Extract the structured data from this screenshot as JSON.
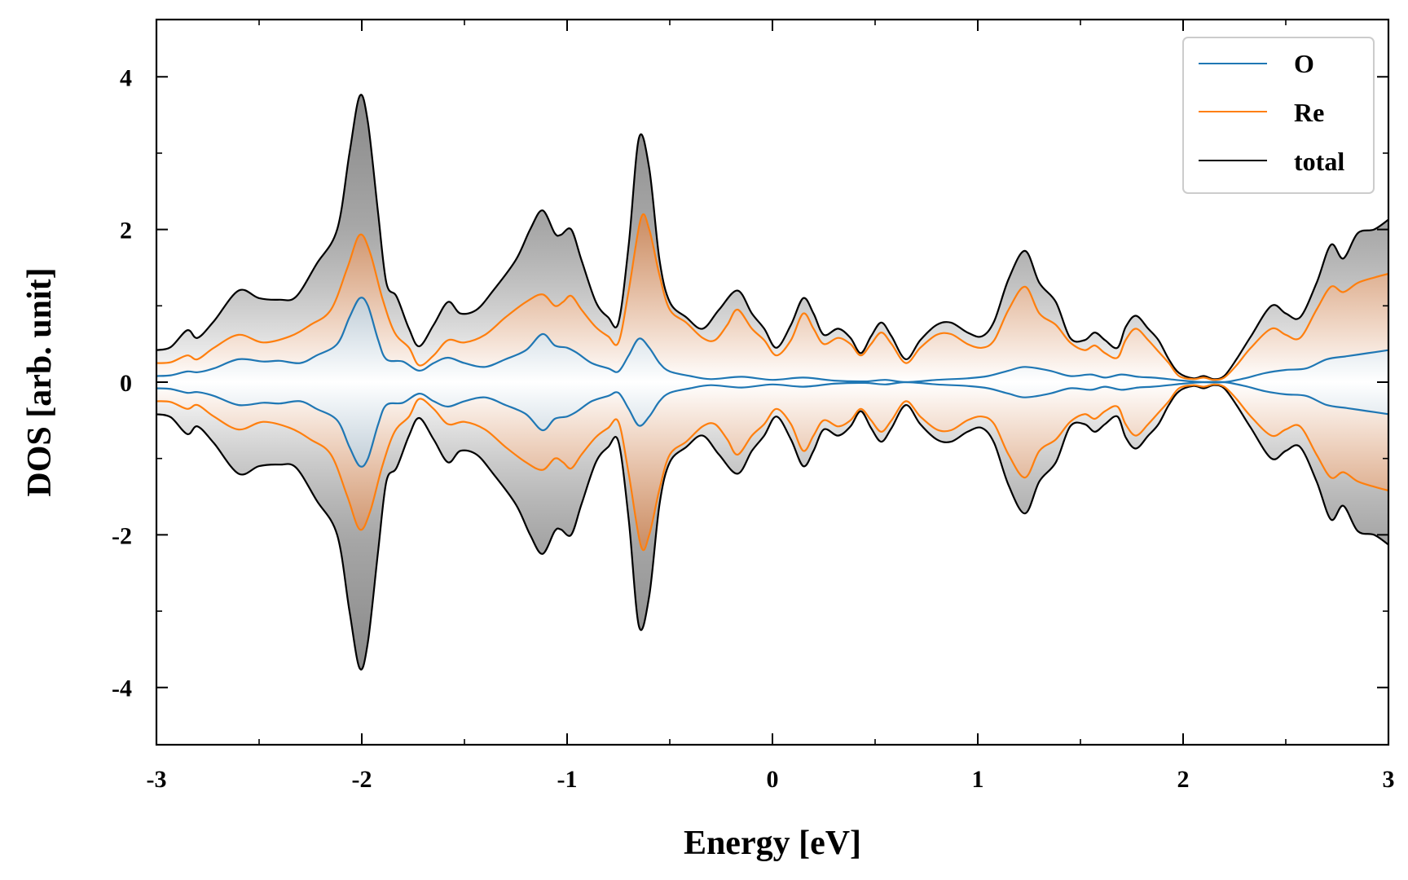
{
  "chart_data": {
    "type": "line",
    "title": "",
    "xlabel": "Energy [eV]",
    "ylabel": "DOS [arb. unit]",
    "xlim": [
      -3,
      3
    ],
    "ylim": [
      -4.75,
      4.75
    ],
    "xticks": [
      -3,
      -2,
      -1,
      0,
      1,
      2,
      3
    ],
    "xtick_labels": [
      "-3",
      "-2",
      "-1",
      "0",
      "1",
      "2",
      "3"
    ],
    "xminor": [
      -2.5,
      -1.5,
      -0.5,
      0.5,
      1.5,
      2.5
    ],
    "yticks": [
      -4,
      -2,
      0,
      2,
      4
    ],
    "ytick_labels": [
      "-4",
      "-2",
      "0",
      "2",
      "4"
    ],
    "yminor": [
      -3,
      -1,
      1,
      3
    ],
    "grid": false,
    "legend_position": "top-right",
    "mirrored_negative": true,
    "series": [
      {
        "name": "total",
        "color": "#000000",
        "fill": "#888888",
        "points": [
          [
            -3.0,
            0.42
          ],
          [
            -2.93,
            0.46
          ],
          [
            -2.85,
            0.68
          ],
          [
            -2.8,
            0.58
          ],
          [
            -2.72,
            0.8
          ],
          [
            -2.6,
            1.2
          ],
          [
            -2.5,
            1.1
          ],
          [
            -2.4,
            1.08
          ],
          [
            -2.32,
            1.12
          ],
          [
            -2.22,
            1.55
          ],
          [
            -2.12,
            2.0
          ],
          [
            -2.06,
            3.0
          ],
          [
            -2.01,
            3.75
          ],
          [
            -1.97,
            3.4
          ],
          [
            -1.92,
            2.2
          ],
          [
            -1.88,
            1.3
          ],
          [
            -1.83,
            1.12
          ],
          [
            -1.77,
            0.7
          ],
          [
            -1.72,
            0.47
          ],
          [
            -1.65,
            0.75
          ],
          [
            -1.58,
            1.05
          ],
          [
            -1.52,
            0.9
          ],
          [
            -1.44,
            0.95
          ],
          [
            -1.36,
            1.2
          ],
          [
            -1.25,
            1.6
          ],
          [
            -1.18,
            2.0
          ],
          [
            -1.12,
            2.25
          ],
          [
            -1.06,
            1.95
          ],
          [
            -1.03,
            1.93
          ],
          [
            -0.98,
            2.0
          ],
          [
            -0.93,
            1.6
          ],
          [
            -0.86,
            1.05
          ],
          [
            -0.8,
            0.85
          ],
          [
            -0.75,
            0.78
          ],
          [
            -0.7,
            1.8
          ],
          [
            -0.65,
            3.2
          ],
          [
            -0.6,
            2.8
          ],
          [
            -0.55,
            1.6
          ],
          [
            -0.5,
            1.05
          ],
          [
            -0.42,
            0.85
          ],
          [
            -0.34,
            0.7
          ],
          [
            -0.26,
            0.95
          ],
          [
            -0.17,
            1.2
          ],
          [
            -0.1,
            0.9
          ],
          [
            -0.04,
            0.7
          ],
          [
            0.02,
            0.45
          ],
          [
            0.09,
            0.75
          ],
          [
            0.15,
            1.1
          ],
          [
            0.2,
            0.9
          ],
          [
            0.25,
            0.62
          ],
          [
            0.32,
            0.7
          ],
          [
            0.38,
            0.58
          ],
          [
            0.43,
            0.38
          ],
          [
            0.48,
            0.6
          ],
          [
            0.53,
            0.78
          ],
          [
            0.58,
            0.6
          ],
          [
            0.65,
            0.3
          ],
          [
            0.72,
            0.55
          ],
          [
            0.8,
            0.75
          ],
          [
            0.87,
            0.78
          ],
          [
            0.95,
            0.65
          ],
          [
            1.02,
            0.6
          ],
          [
            1.08,
            0.8
          ],
          [
            1.15,
            1.35
          ],
          [
            1.23,
            1.72
          ],
          [
            1.3,
            1.3
          ],
          [
            1.38,
            1.05
          ],
          [
            1.45,
            0.58
          ],
          [
            1.52,
            0.55
          ],
          [
            1.57,
            0.65
          ],
          [
            1.62,
            0.55
          ],
          [
            1.68,
            0.45
          ],
          [
            1.72,
            0.72
          ],
          [
            1.77,
            0.87
          ],
          [
            1.83,
            0.7
          ],
          [
            1.88,
            0.55
          ],
          [
            1.93,
            0.3
          ],
          [
            1.98,
            0.12
          ],
          [
            2.05,
            0.05
          ],
          [
            2.1,
            0.08
          ],
          [
            2.15,
            0.04
          ],
          [
            2.2,
            0.08
          ],
          [
            2.26,
            0.3
          ],
          [
            2.33,
            0.6
          ],
          [
            2.43,
            1.0
          ],
          [
            2.5,
            0.9
          ],
          [
            2.57,
            0.85
          ],
          [
            2.65,
            1.3
          ],
          [
            2.72,
            1.8
          ],
          [
            2.78,
            1.62
          ],
          [
            2.85,
            1.95
          ],
          [
            2.93,
            2.0
          ],
          [
            3.0,
            2.13
          ]
        ]
      },
      {
        "name": "Re",
        "color": "#ff7f0e",
        "fill": "#d98a55",
        "points": [
          [
            -3.0,
            0.25
          ],
          [
            -2.93,
            0.26
          ],
          [
            -2.85,
            0.35
          ],
          [
            -2.8,
            0.3
          ],
          [
            -2.72,
            0.45
          ],
          [
            -2.6,
            0.62
          ],
          [
            -2.48,
            0.52
          ],
          [
            -2.35,
            0.6
          ],
          [
            -2.25,
            0.75
          ],
          [
            -2.15,
            0.95
          ],
          [
            -2.07,
            1.5
          ],
          [
            -2.01,
            1.93
          ],
          [
            -1.96,
            1.7
          ],
          [
            -1.9,
            1.1
          ],
          [
            -1.84,
            0.65
          ],
          [
            -1.77,
            0.45
          ],
          [
            -1.72,
            0.22
          ],
          [
            -1.65,
            0.35
          ],
          [
            -1.58,
            0.55
          ],
          [
            -1.5,
            0.52
          ],
          [
            -1.4,
            0.62
          ],
          [
            -1.3,
            0.85
          ],
          [
            -1.2,
            1.05
          ],
          [
            -1.12,
            1.15
          ],
          [
            -1.06,
            1.0
          ],
          [
            -1.02,
            1.05
          ],
          [
            -0.98,
            1.13
          ],
          [
            -0.93,
            0.95
          ],
          [
            -0.86,
            0.72
          ],
          [
            -0.8,
            0.6
          ],
          [
            -0.75,
            0.52
          ],
          [
            -0.7,
            1.2
          ],
          [
            -0.64,
            2.15
          ],
          [
            -0.6,
            2.0
          ],
          [
            -0.55,
            1.4
          ],
          [
            -0.5,
            0.95
          ],
          [
            -0.42,
            0.78
          ],
          [
            -0.34,
            0.58
          ],
          [
            -0.28,
            0.55
          ],
          [
            -0.22,
            0.75
          ],
          [
            -0.17,
            0.95
          ],
          [
            -0.1,
            0.7
          ],
          [
            -0.04,
            0.55
          ],
          [
            0.02,
            0.35
          ],
          [
            0.09,
            0.55
          ],
          [
            0.15,
            0.9
          ],
          [
            0.2,
            0.7
          ],
          [
            0.25,
            0.5
          ],
          [
            0.32,
            0.58
          ],
          [
            0.38,
            0.5
          ],
          [
            0.43,
            0.35
          ],
          [
            0.48,
            0.5
          ],
          [
            0.53,
            0.65
          ],
          [
            0.58,
            0.5
          ],
          [
            0.65,
            0.25
          ],
          [
            0.72,
            0.45
          ],
          [
            0.8,
            0.62
          ],
          [
            0.87,
            0.63
          ],
          [
            0.95,
            0.5
          ],
          [
            1.02,
            0.45
          ],
          [
            1.08,
            0.55
          ],
          [
            1.15,
            0.95
          ],
          [
            1.23,
            1.25
          ],
          [
            1.3,
            0.9
          ],
          [
            1.38,
            0.75
          ],
          [
            1.45,
            0.52
          ],
          [
            1.52,
            0.42
          ],
          [
            1.57,
            0.48
          ],
          [
            1.62,
            0.38
          ],
          [
            1.68,
            0.32
          ],
          [
            1.72,
            0.55
          ],
          [
            1.77,
            0.7
          ],
          [
            1.83,
            0.55
          ],
          [
            1.88,
            0.4
          ],
          [
            1.93,
            0.25
          ],
          [
            1.98,
            0.08
          ],
          [
            2.05,
            0.04
          ],
          [
            2.1,
            0.06
          ],
          [
            2.15,
            0.03
          ],
          [
            2.2,
            0.06
          ],
          [
            2.26,
            0.22
          ],
          [
            2.33,
            0.45
          ],
          [
            2.43,
            0.7
          ],
          [
            2.5,
            0.62
          ],
          [
            2.57,
            0.58
          ],
          [
            2.65,
            0.95
          ],
          [
            2.72,
            1.25
          ],
          [
            2.78,
            1.18
          ],
          [
            2.85,
            1.3
          ],
          [
            2.93,
            1.37
          ],
          [
            3.0,
            1.42
          ]
        ]
      },
      {
        "name": "O",
        "color": "#1f77b4",
        "fill": "#7fa3bd",
        "points": [
          [
            -3.0,
            0.08
          ],
          [
            -2.93,
            0.09
          ],
          [
            -2.85,
            0.14
          ],
          [
            -2.8,
            0.13
          ],
          [
            -2.72,
            0.18
          ],
          [
            -2.6,
            0.3
          ],
          [
            -2.48,
            0.27
          ],
          [
            -2.4,
            0.28
          ],
          [
            -2.3,
            0.25
          ],
          [
            -2.22,
            0.35
          ],
          [
            -2.12,
            0.5
          ],
          [
            -2.06,
            0.85
          ],
          [
            -2.01,
            1.1
          ],
          [
            -1.97,
            1.0
          ],
          [
            -1.92,
            0.55
          ],
          [
            -1.88,
            0.3
          ],
          [
            -1.8,
            0.27
          ],
          [
            -1.72,
            0.15
          ],
          [
            -1.65,
            0.25
          ],
          [
            -1.58,
            0.32
          ],
          [
            -1.5,
            0.25
          ],
          [
            -1.4,
            0.2
          ],
          [
            -1.3,
            0.3
          ],
          [
            -1.2,
            0.42
          ],
          [
            -1.12,
            0.63
          ],
          [
            -1.06,
            0.48
          ],
          [
            -1.0,
            0.45
          ],
          [
            -0.95,
            0.38
          ],
          [
            -0.88,
            0.25
          ],
          [
            -0.8,
            0.18
          ],
          [
            -0.75,
            0.14
          ],
          [
            -0.7,
            0.35
          ],
          [
            -0.65,
            0.57
          ],
          [
            -0.6,
            0.45
          ],
          [
            -0.55,
            0.25
          ],
          [
            -0.5,
            0.14
          ],
          [
            -0.4,
            0.08
          ],
          [
            -0.3,
            0.04
          ],
          [
            -0.15,
            0.07
          ],
          [
            0.0,
            0.03
          ],
          [
            0.15,
            0.06
          ],
          [
            0.3,
            0.02
          ],
          [
            0.45,
            0.01
          ],
          [
            0.55,
            0.03
          ],
          [
            0.65,
            0.0
          ],
          [
            0.8,
            0.03
          ],
          [
            0.95,
            0.05
          ],
          [
            1.05,
            0.08
          ],
          [
            1.15,
            0.15
          ],
          [
            1.23,
            0.2
          ],
          [
            1.35,
            0.15
          ],
          [
            1.45,
            0.08
          ],
          [
            1.55,
            0.1
          ],
          [
            1.62,
            0.06
          ],
          [
            1.7,
            0.1
          ],
          [
            1.78,
            0.07
          ],
          [
            1.85,
            0.06
          ],
          [
            1.93,
            0.04
          ],
          [
            2.0,
            0.02
          ],
          [
            2.1,
            0.0
          ],
          [
            2.2,
            0.0
          ],
          [
            2.3,
            0.05
          ],
          [
            2.4,
            0.12
          ],
          [
            2.5,
            0.16
          ],
          [
            2.6,
            0.18
          ],
          [
            2.7,
            0.3
          ],
          [
            2.8,
            0.34
          ],
          [
            2.9,
            0.38
          ],
          [
            3.0,
            0.42
          ]
        ]
      }
    ]
  },
  "legend": {
    "items": [
      {
        "label": "O",
        "color": "#1f77b4"
      },
      {
        "label": "Re",
        "color": "#ff7f0e"
      },
      {
        "label": "total",
        "color": "#000000"
      }
    ]
  }
}
